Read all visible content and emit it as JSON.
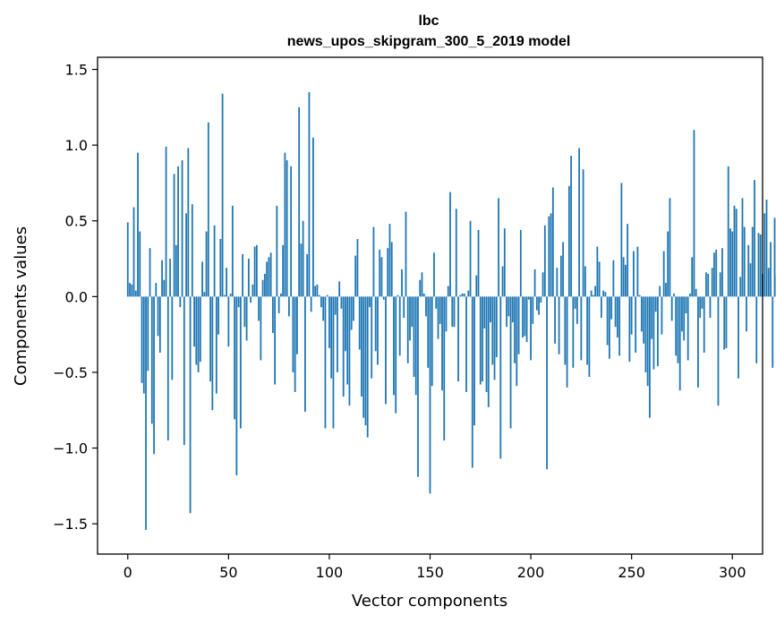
{
  "chart_data": {
    "type": "bar",
    "title_line1": "lbc",
    "title_line2": "news_upos_skipgram_300_5_2019 model",
    "xlabel": "Vector components",
    "ylabel": "Components values",
    "xlim": [
      -15,
      315
    ],
    "ylim": [
      -1.7,
      1.58
    ],
    "xticks": [
      0,
      50,
      100,
      150,
      200,
      250,
      300
    ],
    "xtick_labels": [
      "0",
      "50",
      "100",
      "150",
      "200",
      "250",
      "300"
    ],
    "yticks": [
      -1.5,
      -1.0,
      -0.5,
      0.0,
      0.5,
      1.0,
      1.5
    ],
    "ytick_labels": [
      "−1.5",
      "−1.0",
      "−0.5",
      "0.0",
      "0.5",
      "1.0",
      "1.5"
    ],
    "bar_color": "#1f77b4",
    "series": [
      {
        "name": "components",
        "values": [
          0.49,
          0.09,
          0.08,
          0.59,
          0.04,
          0.95,
          0.43,
          -0.57,
          -0.64,
          -1.54,
          -0.49,
          0.32,
          -0.84,
          -1.04,
          0.09,
          -0.26,
          -0.37,
          0.24,
          0.11,
          0.99,
          -0.95,
          0.25,
          -0.55,
          0.81,
          0.34,
          0.86,
          -0.07,
          0.9,
          -0.98,
          0.55,
          0.98,
          -1.43,
          0.61,
          -0.33,
          -0.45,
          -0.5,
          -0.43,
          0.23,
          0.03,
          0.43,
          1.15,
          -0.56,
          -0.75,
          0.47,
          -0.64,
          -0.25,
          0.38,
          1.34,
          0.01,
          0.19,
          -0.33,
          0.02,
          0.6,
          -0.81,
          -1.18,
          -0.07,
          -0.87,
          0.28,
          -0.2,
          -0.29,
          0.25,
          -0.04,
          0.08,
          0.33,
          0.34,
          -0.16,
          -0.42,
          0.11,
          0.15,
          0.23,
          0.26,
          0.29,
          -0.24,
          -0.58,
          0.6,
          -0.11,
          0.02,
          0.34,
          0.95,
          0.9,
          -0.13,
          0.86,
          -0.5,
          -0.63,
          -0.38,
          1.25,
          0.35,
          0.5,
          -0.76,
          0.28,
          1.35,
          -0.1,
          1.05,
          0.07,
          0.08,
          0.01,
          -0.07,
          -0.16,
          -0.87,
          0.01,
          -0.34,
          -0.54,
          -0.87,
          -0.12,
          -0.5,
          0.1,
          -0.08,
          -0.66,
          -0.36,
          -0.58,
          -0.72,
          -0.22,
          -0.16,
          0.27,
          0.38,
          -0.35,
          -0.66,
          -0.8,
          -0.85,
          -0.93,
          -0.07,
          -0.54,
          0.46,
          -0.36,
          -0.45,
          0.31,
          0.26,
          -0.02,
          -0.71,
          0.32,
          0.48,
          0.36,
          -0.65,
          -0.77,
          0.01,
          -0.39,
          0.18,
          -0.14,
          0.56,
          -0.44,
          -0.29,
          -0.2,
          -0.53,
          -0.65,
          -1.19,
          0.11,
          0.16,
          0.02,
          -0.13,
          -0.47,
          -1.3,
          -0.59,
          0.29,
          -0.08,
          -0.28,
          -0.18,
          -0.62,
          -0.95,
          -0.23,
          0.07,
          0.69,
          -0.2,
          -0.2,
          0.58,
          -0.56,
          0.01,
          0.02,
          0.02,
          -0.63,
          0.04,
          0.5,
          -1.13,
          -0.85,
          0.14,
          0.44,
          -0.58,
          -0.56,
          -0.21,
          -0.63,
          -0.73,
          -0.17,
          -0.45,
          -0.55,
          -0.4,
          0.65,
          -1.07,
          0.2,
          0.45,
          -0.2,
          -0.13,
          -0.87,
          -0.17,
          -0.44,
          -0.59,
          -0.38,
          0.44,
          -0.27,
          -0.26,
          -0.3,
          -0.02,
          -0.42,
          -0.18,
          0.18,
          -0.09,
          -0.12,
          -0.04,
          0.16,
          0.47,
          -1.14,
          0.53,
          0.55,
          0.72,
          -0.31,
          0.19,
          -0.38,
          0.27,
          0.36,
          -0.45,
          -0.6,
          0.73,
          0.93,
          -0.47,
          -0.08,
          -0.18,
          0.98,
          -0.42,
          0.84,
          0.2,
          -0.45,
          -0.53,
          0.04,
          0.01,
          0.07,
          0.33,
          0.23,
          -0.14,
          0.04,
          0.03,
          -0.32,
          -0.41,
          -0.15,
          0.24,
          -0.2,
          -0.27,
          -0.39,
          0.75,
          0.26,
          0.21,
          0.48,
          -0.43,
          -0.25,
          0.3,
          -0.37,
          0.33,
          0.01,
          -0.23,
          -0.31,
          -0.5,
          -0.59,
          -0.8,
          -0.28,
          -0.48,
          -0.1,
          -0.46,
          0.07,
          -0.25,
          0.3,
          0.09,
          0.43,
          0.65,
          -0.16,
          0.02,
          -0.39,
          -0.44,
          -0.62,
          -0.23,
          -0.29,
          -0.11,
          -0.42,
          0.02,
          0.26,
          1.1,
          0.05,
          -0.6,
          -0.14,
          -0.08,
          -0.37,
          0.16,
          0.15,
          -0.14,
          0.19,
          0.29,
          0.31,
          -0.72,
          0.16,
          0.32,
          -0.35,
          -0.34,
          0.86,
          0.45,
          0.43,
          0.6,
          0.58,
          -0.54,
          0.13,
          0.65,
          0.46,
          -0.23,
          0.34,
          0.22,
          0.46,
          0.77,
          -0.44,
          0.42,
          0.41,
          0.15,
          0.55,
          0.64,
          0.19,
          0.36,
          -0.47,
          0.52,
          0.14,
          0.36,
          0.52,
          0.34,
          0.4,
          0.56,
          -0.43,
          0.26,
          0.28,
          -0.59,
          -0.11,
          -0.22,
          0.15,
          -0.1,
          -0.09,
          -0.11,
          0.25,
          0.6,
          0.08,
          0.64,
          -0.49,
          -0.37,
          0.19,
          -0.32,
          -0.28,
          -0.42,
          -0.1,
          0.3,
          0.16,
          0.15,
          0.23,
          -0.45,
          0.28,
          0.2,
          0.41,
          -0.27,
          0.11,
          -0.52,
          -0.2,
          0.48,
          0.22,
          -0.1,
          0.01,
          -0.07,
          -0.45,
          -0.11,
          -0.07,
          -0.47,
          -0.32,
          0.54,
          0.12,
          0.01,
          0.05,
          -0.44,
          0.41,
          -0.26,
          -0.26,
          -0.27,
          0.36,
          0.43,
          0.28,
          -0.54,
          0.81,
          -0.32,
          0.2,
          -0.28,
          -0.12,
          0.79,
          0.6,
          0.64,
          -0.78,
          -0.01,
          -0.27,
          0.98,
          0.72,
          -0.14,
          0.02,
          0.01,
          0.02,
          -0.23,
          -0.09,
          -0.04,
          -0.36,
          -0.4,
          0.07,
          0.14,
          -0.52,
          -0.44,
          0.18,
          -0.08,
          0.31,
          0.46,
          -0.26,
          -0.34,
          -0.16,
          0.44,
          -0.19,
          -0.14,
          -0.54,
          0.13,
          -0.33,
          -0.35,
          0.2,
          -0.09,
          0.4,
          -0.06,
          -0.04,
          -0.2,
          0.06,
          -0.17,
          -0.16,
          -0.61,
          -0.14,
          -0.03,
          -0.2,
          0.31,
          -0.19,
          -0.38,
          -0.27,
          -0.27,
          -0.01,
          -0.07,
          -0.23,
          0.13,
          0.13,
          -0.29,
          -0.15,
          0.2,
          -0.27,
          -0.07,
          -0.37,
          -0.09,
          -0.52,
          -0.04,
          0.2,
          -0.57,
          -0.1,
          -0.03,
          -0.06,
          0.31,
          0.2,
          0.44,
          -0.17,
          0.41,
          0.0,
          0.07,
          0.19,
          -0.35,
          -0.07,
          0.12,
          0.19,
          0.2,
          0.12,
          0.21,
          0.14,
          0.58,
          0.01,
          0.14,
          -0.19,
          0.13,
          -0.04,
          -0.17,
          0.11,
          0.16,
          0.19,
          0.07,
          -0.35,
          -0.33,
          -0.25,
          0.04,
          -0.25,
          0.39,
          -0.18,
          -0.27,
          0.12,
          0.38,
          0.11,
          -0.48,
          -0.34,
          -0.1,
          -0.36,
          0.01,
          0.12,
          0.16,
          0.1,
          -0.22,
          0.54,
          0.09,
          -0.1,
          0.1,
          -0.02,
          -0.42,
          0.11,
          -0.05,
          0.05,
          0.31,
          -0.36,
          0.04,
          -0.49,
          0.45,
          0.04,
          0.08,
          0.36,
          -0.52,
          -0.32,
          0.25,
          -0.29,
          -0.29,
          0.01,
          -0.59,
          -0.53,
          -0.34,
          -0.57,
          -0.23,
          -0.15,
          -0.11,
          -0.07,
          0.25,
          -0.43,
          0.26,
          -0.3,
          -0.02,
          0.08,
          0.19,
          0.2,
          0.27,
          -0.18,
          -0.56,
          0.34,
          -0.09,
          -0.05,
          -0.29,
          0.27,
          -0.34,
          -0.21,
          -0.02,
          0.03,
          0.3,
          0.36,
          0.3,
          -0.16,
          -0.04,
          -0.31,
          -0.41,
          0.42,
          0.1,
          -0.24,
          -0.06,
          -0.27,
          -0.61,
          -0.24,
          0.4,
          -0.36,
          -0.2,
          0.02,
          -0.26,
          -0.53,
          -0.42,
          -0.19,
          -0.12,
          -0.06,
          -0.34,
          -0.24,
          0.15,
          -0.23,
          0.19,
          -0.19,
          0.17,
          0.06,
          0.02,
          0.14,
          -0.2,
          -0.26,
          0.1,
          0.09,
          0.21,
          -0.06,
          -0.31,
          0.37,
          -0.02,
          -0.36,
          0.35,
          0.32,
          -0.33,
          0.31,
          -0.17,
          0.1,
          -0.24,
          -0.27,
          -0.51,
          -0.36,
          0.43,
          -0.1,
          0.17,
          -0.23,
          -0.34,
          0.19,
          0.08,
          0.06,
          -0.05,
          -0.28,
          0.05,
          -0.14,
          0.49,
          0.2,
          0.34,
          0.32,
          -0.17,
          0.18,
          -0.23,
          0.46,
          -0.38,
          -0.31,
          0.08,
          0.17,
          -0.15,
          0.06,
          -0.08,
          -0.12,
          0.2,
          0.15,
          -0.31,
          0.09,
          0.24,
          -0.02,
          0.05,
          -0.34,
          0.41,
          0.35,
          -0.1,
          -0.39,
          -0.06,
          0.11,
          -0.22,
          -0.07,
          -0.34,
          -0.17,
          -0.3,
          -0.02,
          0.05,
          -0.46,
          -0.23,
          -0.08,
          0.06,
          0.27,
          -0.31,
          -0.05,
          -0.3,
          -0.16,
          -0.28,
          -0.06,
          0.42,
          -0.21,
          -0.01,
          -0.39,
          -0.51,
          -0.16,
          0.02,
          -0.02,
          0.27,
          0.18,
          0.08,
          -0.04,
          0.3,
          0.14,
          0.49,
          0.04,
          -0.01,
          -0.35,
          -0.08,
          0.22,
          -0.1,
          -0.34,
          -0.02,
          0.49,
          0.03,
          0.31,
          -0.06,
          0.15,
          0.26,
          0.22,
          -0.25,
          -0.08,
          0.18,
          0.35,
          0.24,
          0.25,
          0.21,
          -0.17,
          0.25,
          -0.06,
          -0.32,
          0.14,
          0.05,
          -0.47,
          -0.32,
          -0.07,
          0.12,
          0.11,
          -0.15,
          0.07,
          0.42,
          -0.06,
          -0.2,
          0.27,
          -0.33,
          0.02,
          0.34,
          -0.29,
          -0.2,
          -0.43,
          -0.07,
          -0.01,
          -0.11,
          0.31,
          -0.09,
          0.39,
          -0.14,
          -0.02,
          0.02,
          -0.17,
          0.18,
          0.07,
          0.16,
          0.28,
          -0.04,
          0.08,
          -0.08,
          -0.2,
          0.3,
          -0.09,
          -0.14,
          -0.2,
          0.21,
          -0.16,
          0.16,
          0.1,
          -0.22,
          0.06,
          0.04,
          -0.25,
          0.12,
          -0.02,
          -0.27,
          0.21,
          -0.25,
          0.17,
          0.25,
          -0.29,
          -0.32,
          0.1,
          0.28,
          -0.04,
          0.16,
          -0.12,
          0.12,
          -0.27,
          0.16,
          0.17,
          0.26,
          -0.3,
          -0.12,
          -0.04,
          0.12,
          0.04,
          0.26,
          0.18,
          -0.05,
          0.07,
          0.34,
          -0.25,
          -0.02,
          -0.28,
          0.13,
          0.15,
          0.25,
          0.04,
          0.28,
          0.04,
          0.21,
          -0.1,
          -0.2,
          -0.06,
          -0.06,
          -0.19,
          -0.06,
          0.18,
          -0.14,
          0.16,
          -0.09,
          0.24
        ]
      }
    ]
  }
}
